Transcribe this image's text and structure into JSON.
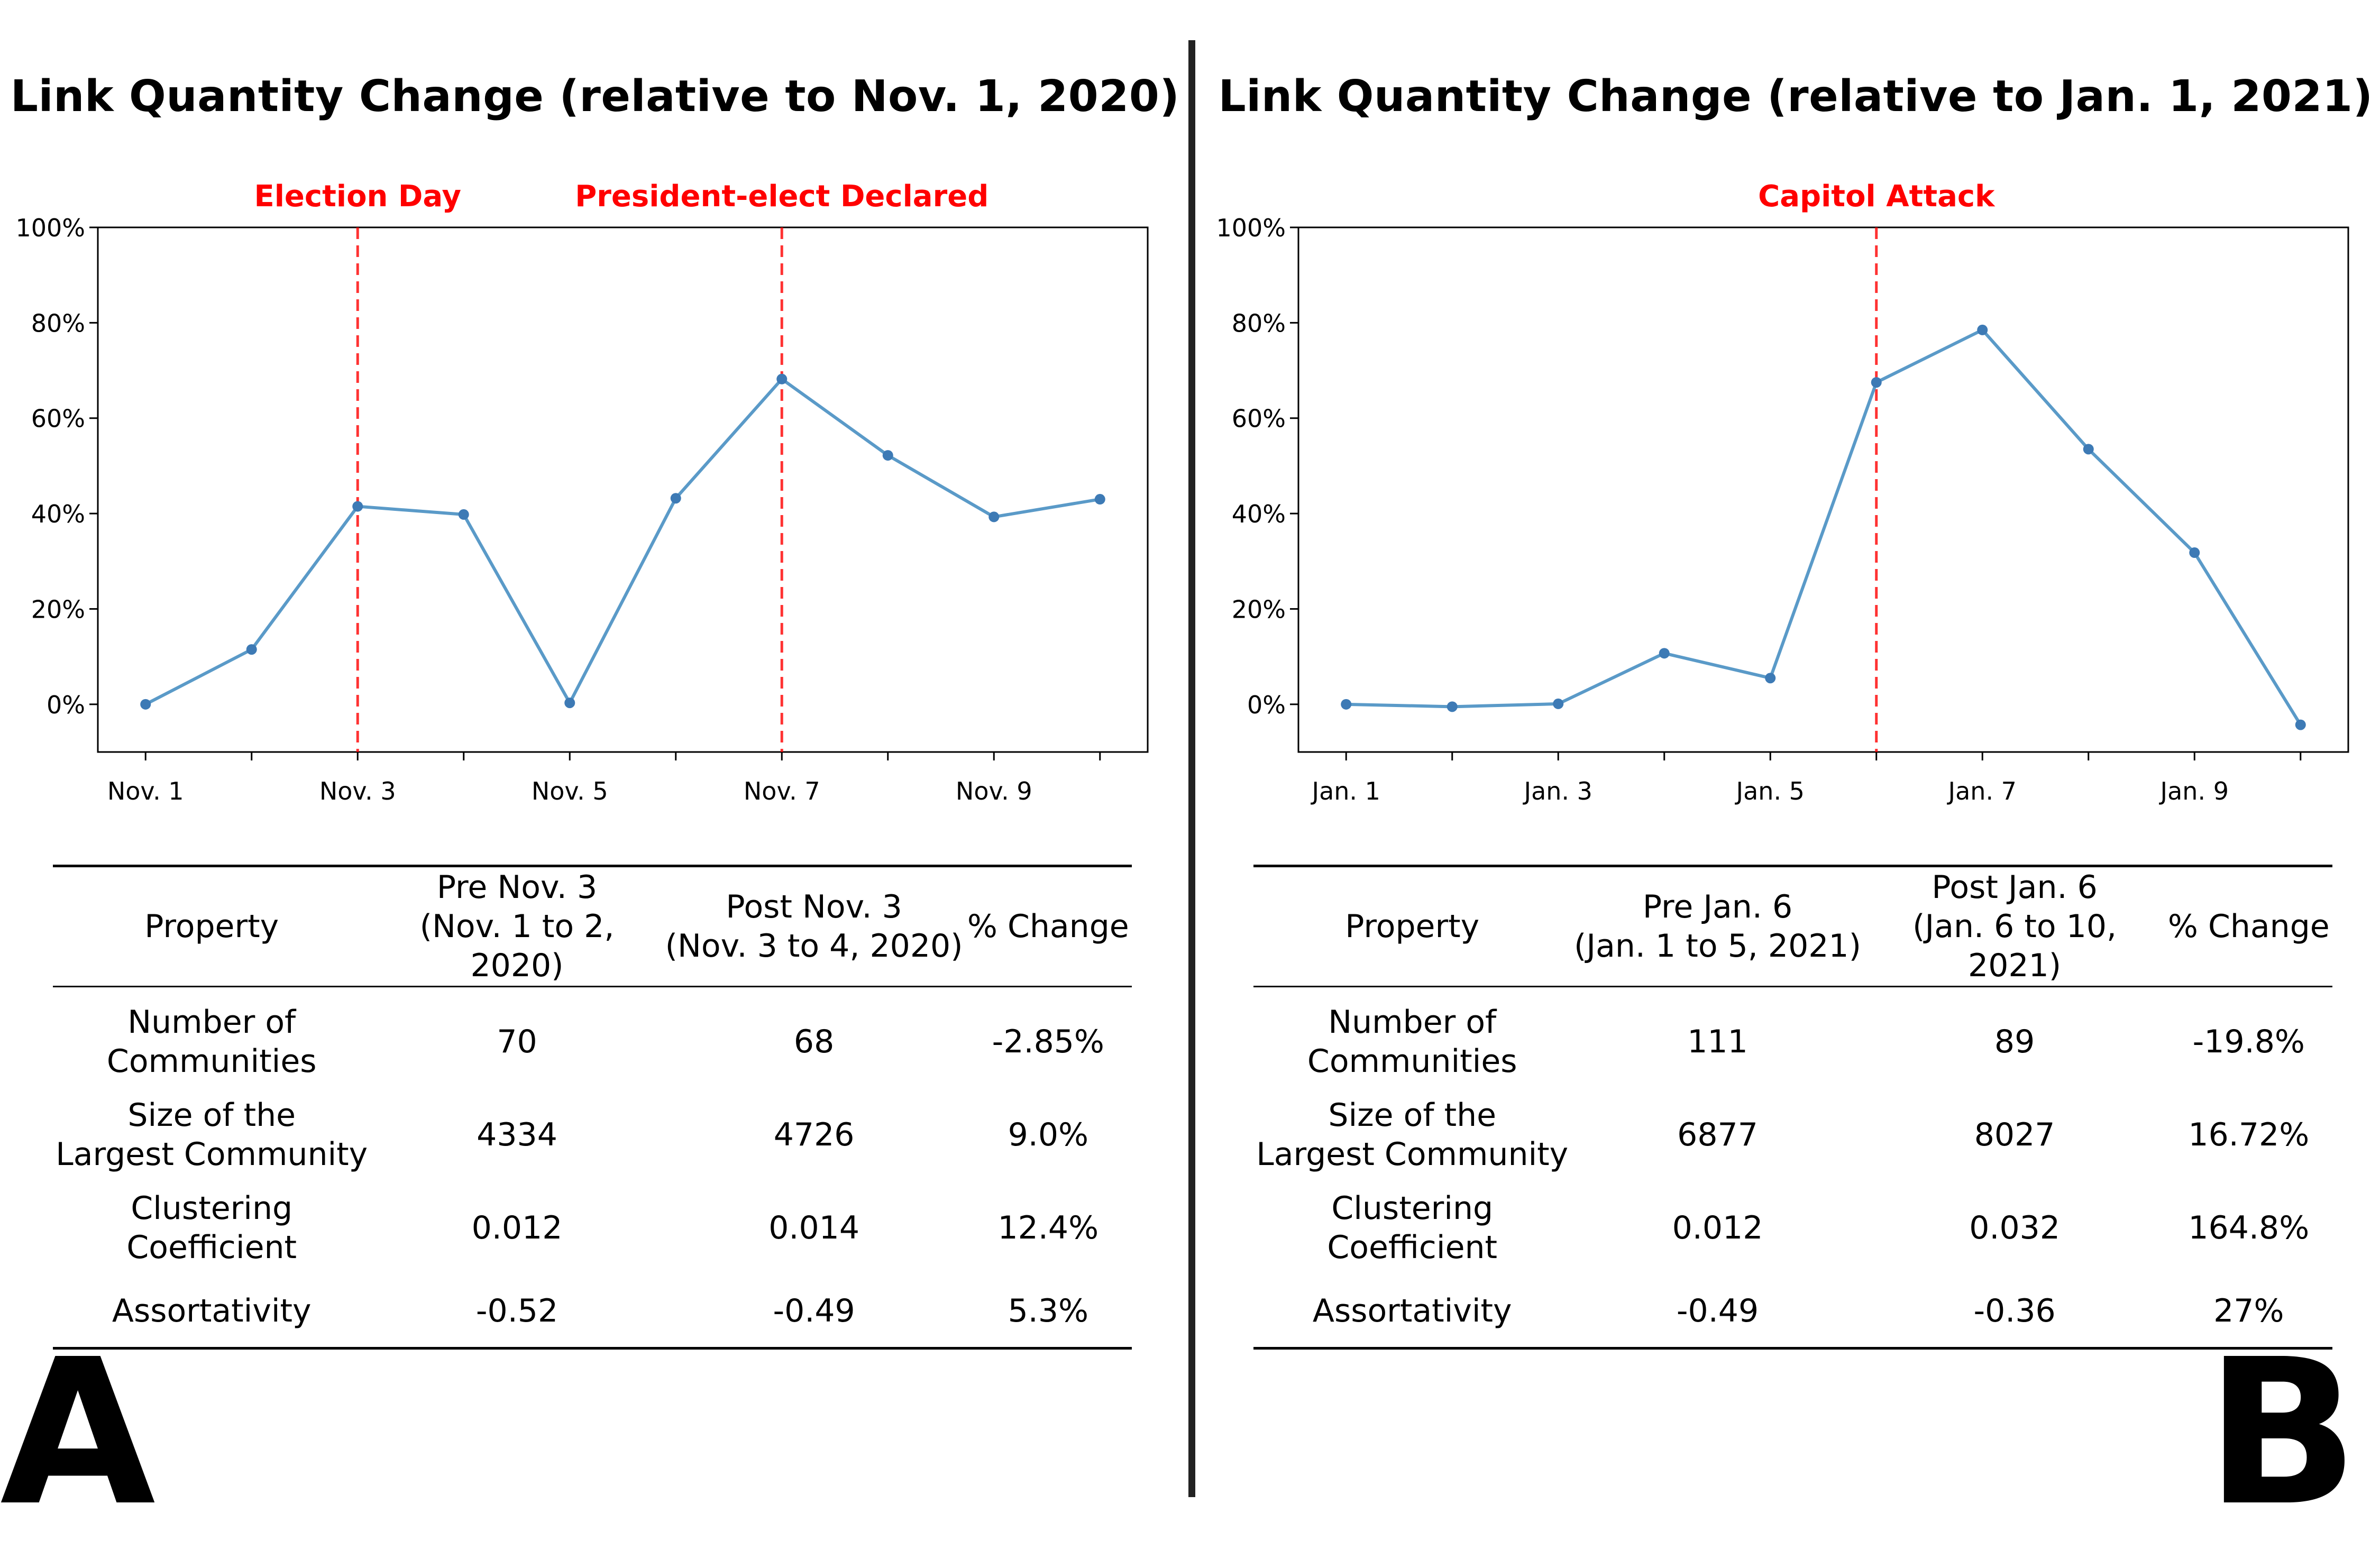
{
  "chart_data": [
    {
      "type": "line",
      "title": "Link Quantity Change (relative to Nov. 1, 2020)",
      "xlabel": "",
      "ylabel": "",
      "x_tick_labels": [
        "Nov. 1",
        "Nov. 3",
        "Nov. 5",
        "Nov. 7",
        "Nov. 9"
      ],
      "x_tick_days": [
        1,
        3,
        5,
        7,
        9
      ],
      "x": [
        1,
        2,
        3,
        4,
        5,
        6,
        7,
        8,
        9,
        10
      ],
      "values": [
        0,
        11.5,
        41.5,
        39.8,
        0.3,
        43.2,
        68.2,
        52.2,
        39.3,
        43.0
      ],
      "xlim": [
        0.55,
        10.45
      ],
      "ylim": [
        -10,
        100
      ],
      "y_tick_labels": [
        "0%",
        "20%",
        "40%",
        "60%",
        "80%",
        "100%"
      ],
      "y_tick_values": [
        0,
        20,
        40,
        60,
        80,
        100
      ],
      "events": [
        {
          "x": 3,
          "label": "Election Day"
        },
        {
          "x": 7,
          "label": "President-elect Declared"
        }
      ],
      "line_color": "#5a9ac8",
      "marker_color": "#3d7ab5",
      "event_color": "#ff0000"
    },
    {
      "type": "line",
      "title": "Link Quantity Change (relative to Jan. 1, 2021)",
      "xlabel": "",
      "ylabel": "",
      "x_tick_labels": [
        "Jan. 1",
        "Jan. 3",
        "Jan. 5",
        "Jan. 7",
        "Jan. 9"
      ],
      "x_tick_days": [
        1,
        3,
        5,
        7,
        9
      ],
      "x": [
        1,
        2,
        3,
        4,
        5,
        6,
        7,
        8,
        9,
        10
      ],
      "values": [
        0,
        -0.5,
        0.1,
        10.7,
        5.5,
        67.5,
        78.5,
        53.5,
        31.8,
        -4.3
      ],
      "xlim": [
        0.55,
        10.45
      ],
      "ylim": [
        -10,
        100
      ],
      "y_tick_labels": [
        "0%",
        "20%",
        "40%",
        "60%",
        "80%",
        "100%"
      ],
      "y_tick_values": [
        0,
        20,
        40,
        60,
        80,
        100
      ],
      "events": [
        {
          "x": 6,
          "label": "Capitol Attack"
        }
      ],
      "line_color": "#5a9ac8",
      "marker_color": "#3d7ab5",
      "event_color": "#ff0000"
    }
  ],
  "tables": [
    {
      "header": {
        "property": "Property",
        "pre": [
          "Pre Nov. 3",
          "(Nov. 1 to 2, 2020)"
        ],
        "post": [
          "Post Nov. 3",
          "(Nov. 3 to 4, 2020)"
        ],
        "change": "% Change"
      },
      "rows": [
        {
          "property": [
            "Number of",
            "Communities"
          ],
          "pre": "70",
          "post": "68",
          "change": "-2.85%"
        },
        {
          "property": [
            "Size of the",
            "Largest Community"
          ],
          "pre": "4334",
          "post": "4726",
          "change": "9.0%"
        },
        {
          "property": [
            "Clustering",
            "Coefficient"
          ],
          "pre": "0.012",
          "post": "0.014",
          "change": "12.4%"
        },
        {
          "property": [
            "Assortativity"
          ],
          "pre": "-0.52",
          "post": "-0.49",
          "change": "5.3%"
        }
      ]
    },
    {
      "header": {
        "property": "Property",
        "pre": [
          "Pre Jan. 6",
          "(Jan. 1 to 5, 2021)"
        ],
        "post": [
          "Post Jan. 6",
          "(Jan. 6 to 10, 2021)"
        ],
        "change": "% Change"
      },
      "rows": [
        {
          "property": [
            "Number of",
            "Communities"
          ],
          "pre": "111",
          "post": "89",
          "change": "-19.8%"
        },
        {
          "property": [
            "Size of the",
            "Largest Community"
          ],
          "pre": "6877",
          "post": "8027",
          "change": "16.72%"
        },
        {
          "property": [
            "Clustering",
            "Coefficient"
          ],
          "pre": "0.012",
          "post": "0.032",
          "change": "164.8%"
        },
        {
          "property": [
            "Assortativity"
          ],
          "pre": "-0.49",
          "post": "-0.36",
          "change": "27%"
        }
      ]
    }
  ],
  "panel_labels": [
    "A",
    "B"
  ]
}
